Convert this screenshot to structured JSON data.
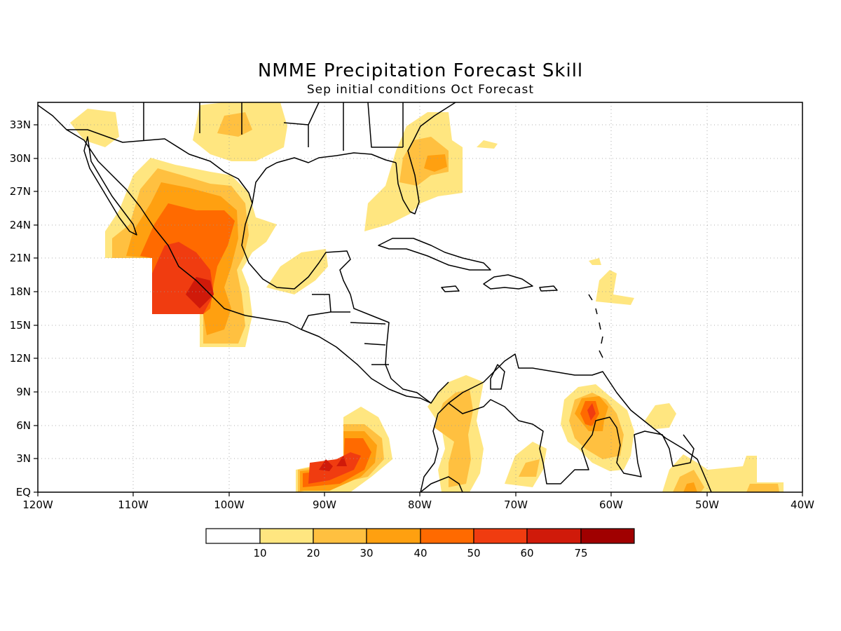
{
  "header": {
    "title": "NMME Precipitation Forecast Skill",
    "subtitle": "Sep initial conditions  Oct Forecast"
  },
  "map": {
    "lon_range": [
      -120,
      -40
    ],
    "lat_range": [
      0,
      35
    ],
    "lon_ticks": [
      "120W",
      "110W",
      "100W",
      "90W",
      "80W",
      "70W",
      "60W",
      "50W",
      "40W"
    ],
    "lat_ticks": [
      "EQ",
      "3N",
      "6N",
      "9N",
      "12N",
      "15N",
      "18N",
      "21N",
      "24N",
      "27N",
      "30N",
      "33N"
    ],
    "grid": "dotted"
  },
  "colorbar": {
    "levels": [
      "10",
      "20",
      "30",
      "40",
      "50",
      "60",
      "75"
    ],
    "colors": [
      "#ffffff",
      "#ffe680",
      "#ffc040",
      "#ffa010",
      "#ff6a00",
      "#f03c10",
      "#d01a0a",
      "#a00000"
    ]
  },
  "chart_data": {
    "type": "heatmap",
    "title": "NMME Precipitation Forecast Skill",
    "subtitle": "Sep initial conditions  Oct Forecast",
    "xlabel": "",
    "ylabel": "",
    "xlim": [
      -120,
      -40
    ],
    "ylim": [
      0,
      35
    ],
    "contour_levels": [
      10,
      20,
      30,
      40,
      50,
      60,
      75
    ],
    "regions": [
      {
        "name": "",
        "level": 10,
        "center": [
          -104,
          22
        ]
      },
      {
        "name": "",
        "level": 30,
        "center": [
          -103,
          21
        ]
      },
      {
        "name": "",
        "level": 50,
        "center": [
          -104,
          19
        ]
      },
      {
        "name": "",
        "level": 60,
        "center": [
          -103,
          18
        ]
      },
      {
        "name": "",
        "level": 50,
        "center": [
          -89,
          2.5
        ]
      },
      {
        "name": "",
        "level": 60,
        "center": [
          -90,
          2.5
        ]
      },
      {
        "name": "",
        "level": 40,
        "center": [
          -62,
          7
        ]
      },
      {
        "name": "",
        "level": 20,
        "center": [
          -77,
          5
        ]
      },
      {
        "name": "",
        "level": 20,
        "center": [
          -80,
          30
        ]
      },
      {
        "name": "",
        "level": 10,
        "center": [
          -47,
          1
        ]
      }
    ]
  }
}
